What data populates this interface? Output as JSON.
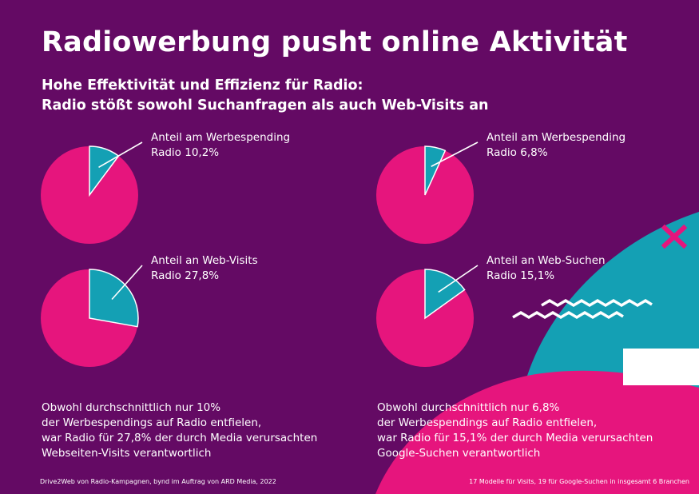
{
  "header": {
    "title": "Radiowerbung pusht online Aktivität",
    "subtitle_line1": "Hohe Effektivität und Effizienz für Radio:",
    "subtitle_line2": "Radio stößt sowohl Suchanfragen als auch Web-Visits an"
  },
  "colors": {
    "background": "#640a64",
    "pie_main": "#e6157d",
    "pie_slice": "#14a0b4",
    "deco_teal": "#14a0b4",
    "deco_pink": "#e6157d",
    "text": "#ffffff"
  },
  "chart_data": [
    {
      "type": "pie",
      "label_line1": "Anteil am Werbespending",
      "label_line2": "Radio 10,2%",
      "slices": [
        {
          "name": "Radio",
          "value": 10.2
        },
        {
          "name": "",
          "value": 89.8
        }
      ]
    },
    {
      "type": "pie",
      "label_line1": "Anteil am Werbespending",
      "label_line2": "Radio 6,8%",
      "slices": [
        {
          "name": "Radio",
          "value": 6.8
        },
        {
          "name": "",
          "value": 93.2
        }
      ]
    },
    {
      "type": "pie",
      "label_line1": "Anteil an Web-Visits",
      "label_line2": "Radio 27,8%",
      "slices": [
        {
          "name": "Radio",
          "value": 27.8
        },
        {
          "name": "",
          "value": 72.2
        }
      ]
    },
    {
      "type": "pie",
      "label_line1": "Anteil an Web-Suchen",
      "label_line2": "Radio 15,1%",
      "slices": [
        {
          "name": "Radio",
          "value": 15.1
        },
        {
          "name": "",
          "value": 84.9
        }
      ]
    }
  ],
  "notes": {
    "left": [
      "Obwohl durchschnittlich nur 10%",
      "der Werbespendings auf Radio entfielen,",
      "war Radio für 27,8% der durch Media verursachten",
      "Webseiten-Visits verantwortlich"
    ],
    "right": [
      "Obwohl durchschnittlich nur 6,8%",
      "der Werbespendings auf Radio entfielen,",
      "war Radio für 15,1% der durch Media verursachten",
      "Google-Suchen verantwortlich"
    ]
  },
  "footer": {
    "left": "Drive2Web von Radio-Kampagnen, bynd im Auftrag von ARD Media, 2022",
    "right": "17 Modelle für Visits, 19 für Google-Suchen in insgesamt 6 Branchen"
  }
}
